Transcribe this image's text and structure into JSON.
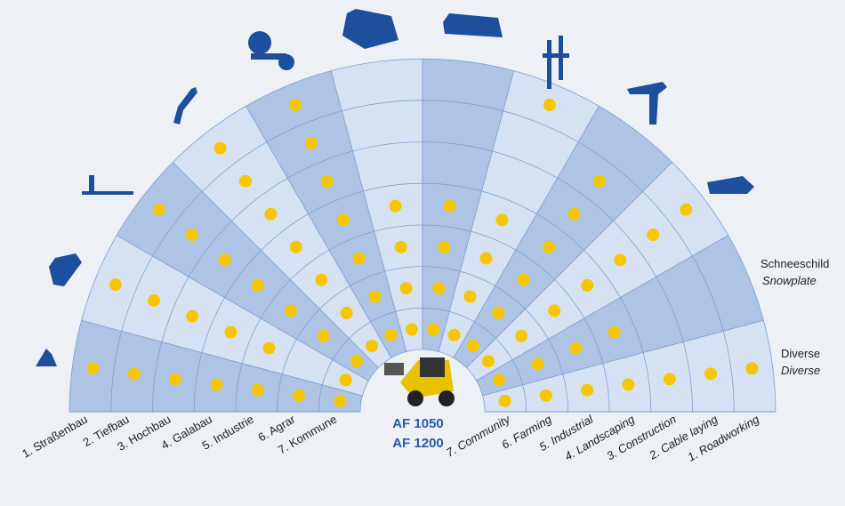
{
  "left_labels": [
    "1. Straßenbau",
    "2. Tiefbau",
    "3. Hochbau",
    "4. Galabau",
    "5. Industrie",
    "6. Agrar",
    "7. Kommune"
  ],
  "right_labels": [
    "7. Community",
    "6. Farming",
    "5. Industrial",
    "4. Landscaping",
    "3. Construction",
    "2. Cable laying",
    "1. Roadworking"
  ],
  "side_labels": [
    {
      "title": "Schneeschild",
      "subtitle": "Snowplate"
    },
    {
      "title": "Diverse",
      "subtitle": "Diverse"
    }
  ],
  "models": [
    "AF 1050",
    "AF 1200"
  ]
}
